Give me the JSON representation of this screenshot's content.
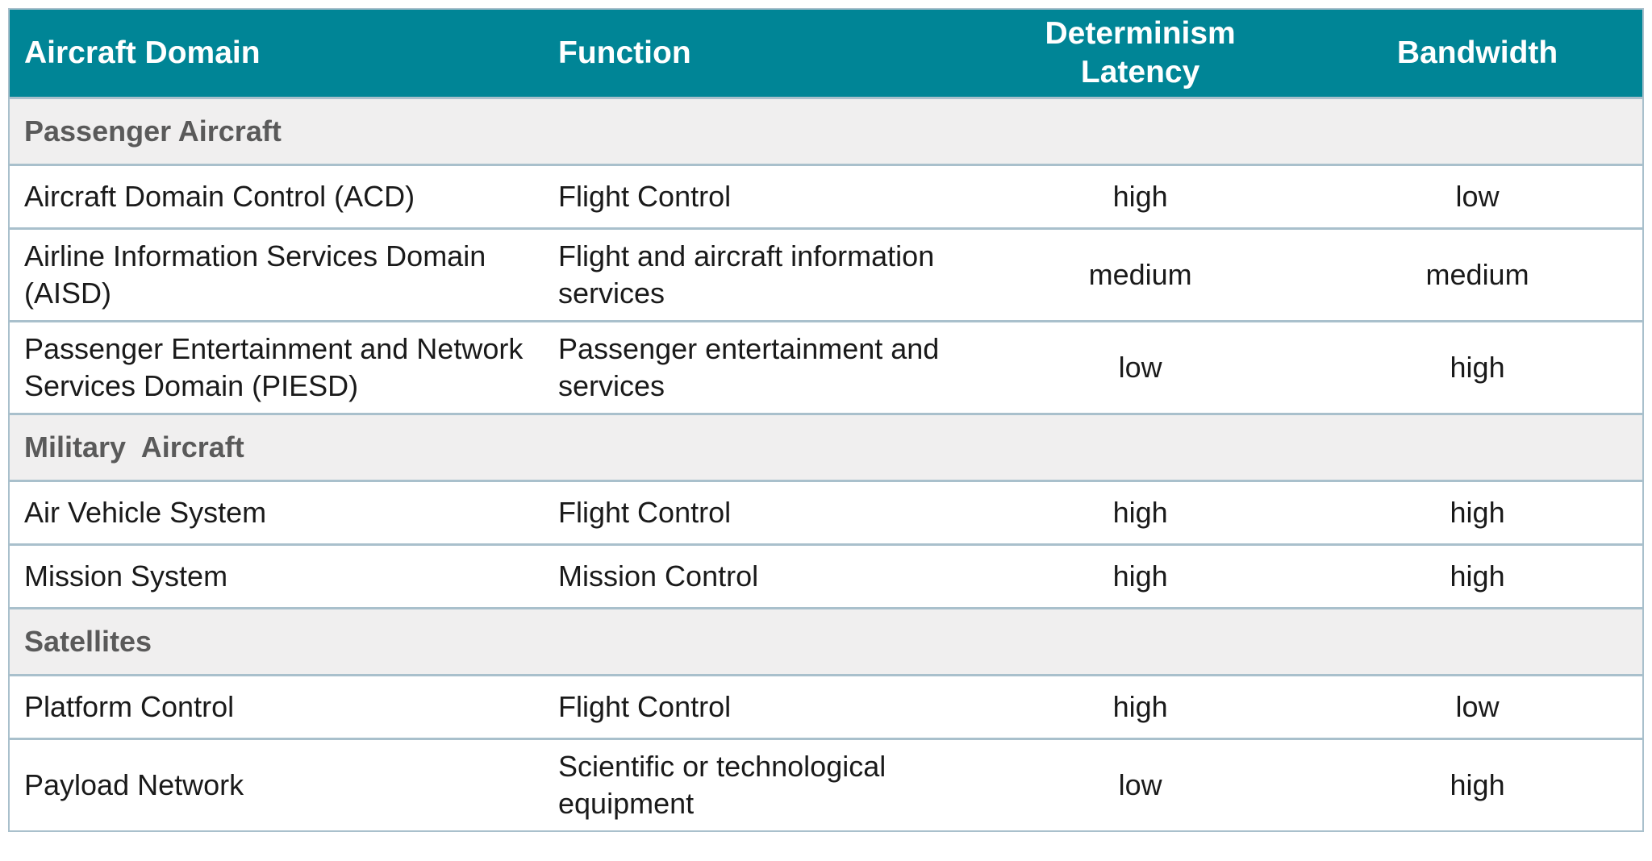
{
  "colors": {
    "header_bg": "#008596",
    "header_text": "#ffffff",
    "section_bg": "#f0efef",
    "section_text": "#5a5a5a",
    "body_text": "#1a1a1a",
    "border": "#a9c0cc"
  },
  "table": {
    "columns": [
      {
        "label": "Aircraft Domain"
      },
      {
        "label": "Function"
      },
      {
        "label": "Determinism Latency"
      },
      {
        "label": "Bandwidth"
      }
    ],
    "sections": [
      {
        "title": "Passenger Aircraft",
        "rows": [
          {
            "cells": [
              "Aircraft Domain Control (ACD)",
              "Flight Control",
              "high",
              "low"
            ]
          },
          {
            "cells": [
              "Airline Information Services Domain (AISD)",
              "Flight and aircraft information services",
              "medium",
              "medium"
            ]
          },
          {
            "cells": [
              "Passenger Entertainment and Network Services Domain (PIESD)",
              "Passenger entertainment and services",
              "low",
              "high"
            ]
          }
        ]
      },
      {
        "title": "Military  Aircraft",
        "rows": [
          {
            "cells": [
              "Air Vehicle System",
              "Flight Control",
              "high",
              "high"
            ]
          },
          {
            "cells": [
              "Mission System",
              "Mission Control",
              "high",
              "high"
            ]
          }
        ]
      },
      {
        "title": "Satellites",
        "rows": [
          {
            "cells": [
              "Platform Control",
              "Flight Control",
              "high",
              "low"
            ]
          },
          {
            "cells": [
              "Payload Network",
              "Scientific or technological equipment",
              "low",
              "high"
            ]
          }
        ]
      }
    ]
  }
}
